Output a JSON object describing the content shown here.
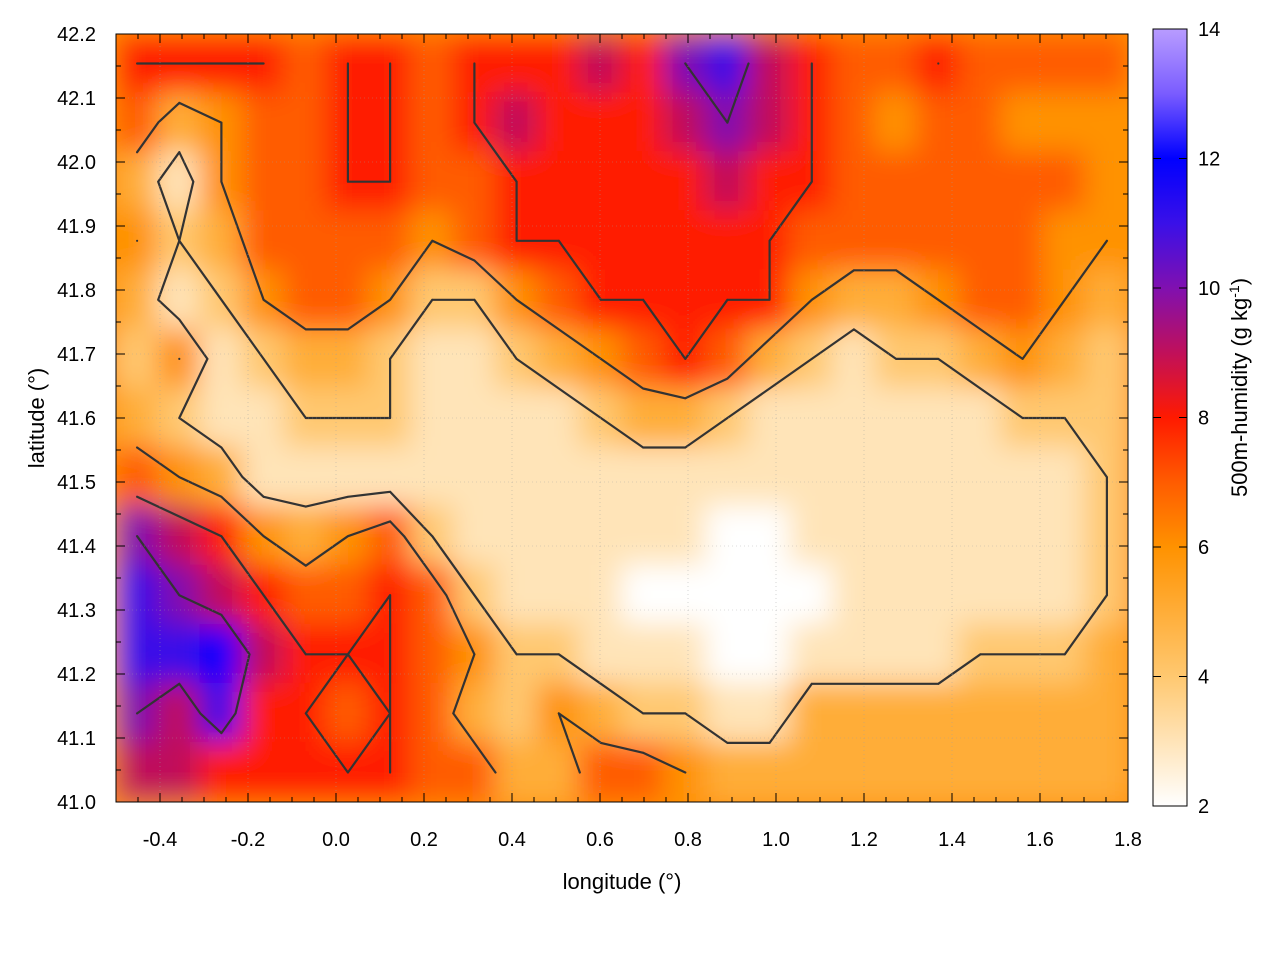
{
  "chart_data": {
    "type": "heatmap",
    "title": "",
    "xlabel": "longitude (°)",
    "ylabel": "latitude (°)",
    "xlim": [
      -0.5,
      1.8
    ],
    "ylim": [
      41.0,
      42.2
    ],
    "x_ticks": [
      -0.4,
      -0.2,
      0.0,
      0.2,
      0.4,
      0.6,
      0.8,
      1.0,
      1.2,
      1.4,
      1.6,
      1.8
    ],
    "y_ticks": [
      41.0,
      41.1,
      41.2,
      41.3,
      41.4,
      41.5,
      41.6,
      41.7,
      41.8,
      41.9,
      42.0,
      42.1,
      42.2
    ],
    "x_tick_labels": [
      "-0.4",
      "-0.2",
      "0.0",
      "0.2",
      "0.4",
      "0.6",
      "0.8",
      "1.0",
      "1.2",
      "1.4",
      "1.6",
      "1.8"
    ],
    "y_tick_labels": [
      "41.0",
      "41.1",
      "41.2",
      "41.3",
      "41.4",
      "41.5",
      "41.6",
      "41.7",
      "41.8",
      "41.9",
      "42.0",
      "42.1",
      "42.2"
    ],
    "grid": true,
    "colorbar": {
      "label_main": "500m-humidity (g kg",
      "label_sup": "-1",
      "label_end": ")",
      "range": [
        2,
        14
      ],
      "ticks": [
        2,
        4,
        6,
        8,
        10,
        12,
        14
      ],
      "tick_labels": [
        "2",
        "4",
        "6",
        "8",
        "10",
        "12",
        "14"
      ],
      "stops": [
        {
          "value": 2,
          "color": "#ffffff"
        },
        {
          "value": 4,
          "color": "#ffc870"
        },
        {
          "value": 6,
          "color": "#ff9200"
        },
        {
          "value": 7,
          "color": "#ff5c00"
        },
        {
          "value": 8,
          "color": "#ff1a00"
        },
        {
          "value": 9,
          "color": "#c0105a"
        },
        {
          "value": 10,
          "color": "#8010b0"
        },
        {
          "value": 11,
          "color": "#3a10e8"
        },
        {
          "value": 12,
          "color": "#0000ff"
        },
        {
          "value": 13,
          "color": "#7a5cff"
        },
        {
          "value": 14,
          "color": "#b89cff"
        }
      ]
    },
    "grid_resolution": {
      "nx": 24,
      "ny": 13
    },
    "humidity_grid_approx": [
      [
        8,
        8,
        8,
        8,
        7,
        8,
        8,
        7,
        8,
        8,
        8,
        9,
        8,
        10,
        11,
        9,
        8,
        7,
        7,
        8,
        7,
        7,
        7,
        7
      ],
      [
        7,
        5,
        6,
        7,
        7,
        8,
        8,
        7,
        8,
        9,
        8,
        8,
        8,
        9,
        10,
        9,
        8,
        7,
        6,
        7,
        7,
        6,
        6,
        6
      ],
      [
        5,
        3,
        6,
        7,
        7,
        8,
        8,
        7,
        7,
        8,
        8,
        8,
        8,
        8,
        9,
        8,
        8,
        7,
        7,
        7,
        7,
        7,
        7,
        6
      ],
      [
        6,
        4,
        5,
        7,
        7,
        7,
        7,
        6,
        7,
        8,
        8,
        8,
        8,
        8,
        8,
        8,
        7,
        7,
        7,
        7,
        7,
        7,
        6,
        6
      ],
      [
        5,
        3,
        4,
        6,
        7,
        7,
        6,
        4,
        4,
        6,
        7,
        8,
        8,
        8,
        8,
        8,
        6,
        5,
        5,
        6,
        7,
        7,
        6,
        5
      ],
      [
        4,
        6,
        3,
        4,
        5,
        5,
        4,
        3,
        3,
        4,
        5,
        6,
        7,
        8,
        7,
        5,
        4,
        3,
        4,
        4,
        5,
        6,
        5,
        4
      ],
      [
        5,
        4,
        3,
        3,
        4,
        4,
        4,
        3,
        3,
        3,
        3,
        4,
        5,
        5,
        4,
        3,
        3,
        3,
        3,
        3,
        3,
        4,
        4,
        4
      ],
      [
        7,
        6,
        5,
        3,
        3,
        3,
        3,
        3,
        3,
        3,
        3,
        3,
        3,
        3,
        3,
        3,
        3,
        3,
        3,
        3,
        3,
        3,
        3,
        4
      ],
      [
        10,
        9,
        8,
        6,
        5,
        6,
        7,
        4,
        3,
        3,
        3,
        3,
        3,
        3,
        2,
        2,
        3,
        3,
        3,
        3,
        3,
        3,
        3,
        4
      ],
      [
        11,
        10,
        9,
        8,
        7,
        7,
        8,
        7,
        4,
        3,
        3,
        3,
        2,
        2,
        2,
        2,
        2,
        3,
        3,
        3,
        3,
        3,
        3,
        4
      ],
      [
        11,
        11,
        12,
        9,
        8,
        8,
        8,
        7,
        6,
        4,
        4,
        3,
        3,
        3,
        2,
        2,
        3,
        3,
        3,
        3,
        4,
        4,
        4,
        5
      ],
      [
        10,
        9,
        11,
        8,
        8,
        7,
        8,
        7,
        5,
        4,
        6,
        5,
        4,
        4,
        3,
        3,
        5,
        5,
        5,
        5,
        5,
        5,
        5,
        5
      ],
      [
        9,
        9,
        8,
        8,
        8,
        8,
        8,
        7,
        7,
        5,
        5,
        7,
        7,
        6,
        5,
        5,
        5,
        5,
        5,
        5,
        5,
        5,
        5,
        5
      ]
    ],
    "contour_levels": [
      4,
      6,
      8,
      10
    ],
    "contour_color": "#333333"
  }
}
